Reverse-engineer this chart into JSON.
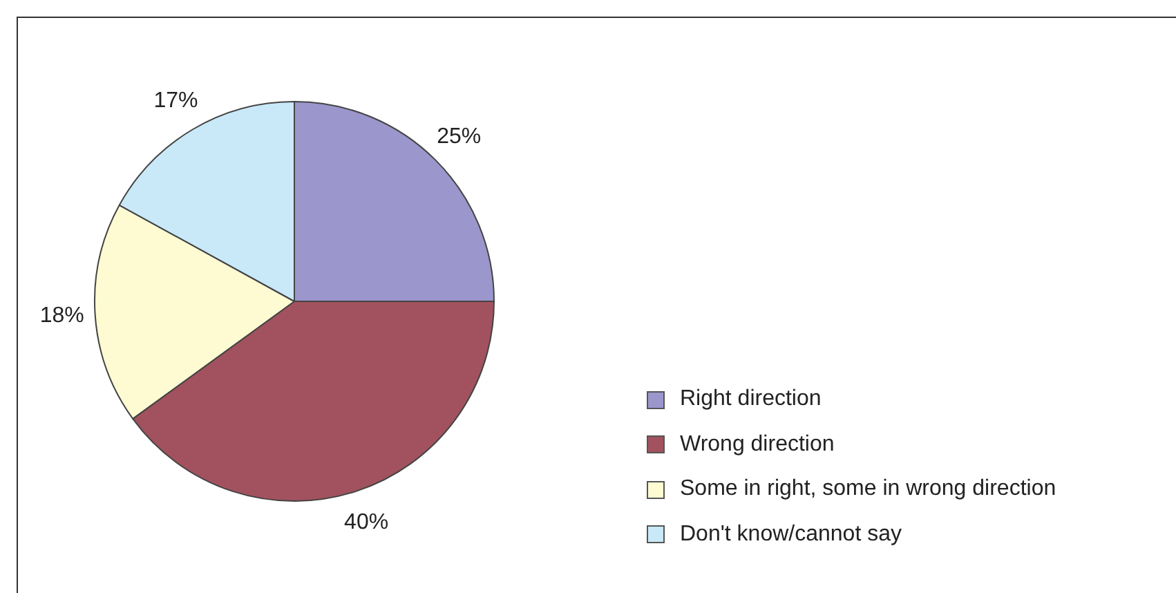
{
  "chart_data": {
    "type": "pie",
    "categories": [
      "Right direction",
      "Wrong direction",
      "Some in right, some in wrong direction",
      "Don't know/cannot say"
    ],
    "values": [
      25,
      40,
      18,
      17
    ],
    "colors": [
      "#9b96cc",
      "#a2525e",
      "#fefad2",
      "#c9e9f9"
    ],
    "value_labels": [
      "25%",
      "40%",
      "18%",
      "17%"
    ],
    "legend": "right"
  }
}
